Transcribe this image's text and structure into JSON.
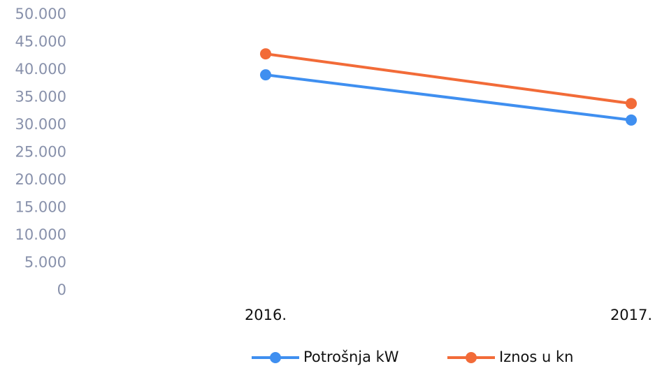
{
  "chart_data": {
    "type": "line",
    "categories": [
      "2016.",
      "2017."
    ],
    "series": [
      {
        "name": "Potrošnja kW",
        "color": "#3f8ff0",
        "values": [
          39100,
          30900
        ]
      },
      {
        "name": "Iznos u kn",
        "color": "#f26b38",
        "values": [
          42900,
          33900
        ]
      }
    ],
    "ylim": [
      0,
      50000
    ],
    "yticks": [
      0,
      {
        "value": 5000,
        "label": "5.000"
      },
      {
        "value": 10000,
        "label": "10.000"
      },
      {
        "value": 15000,
        "label": "15.000"
      },
      {
        "value": 20000,
        "label": "20.000"
      },
      {
        "value": 25000,
        "label": "25.000"
      },
      {
        "value": 30000,
        "label": "30.000"
      },
      {
        "value": 35000,
        "label": "35.000"
      },
      {
        "value": 40000,
        "label": "40.000"
      },
      {
        "value": 45000,
        "label": "45.000"
      },
      {
        "value": 50000,
        "label": "50.000"
      }
    ],
    "grid": false,
    "legend": "bottom"
  }
}
